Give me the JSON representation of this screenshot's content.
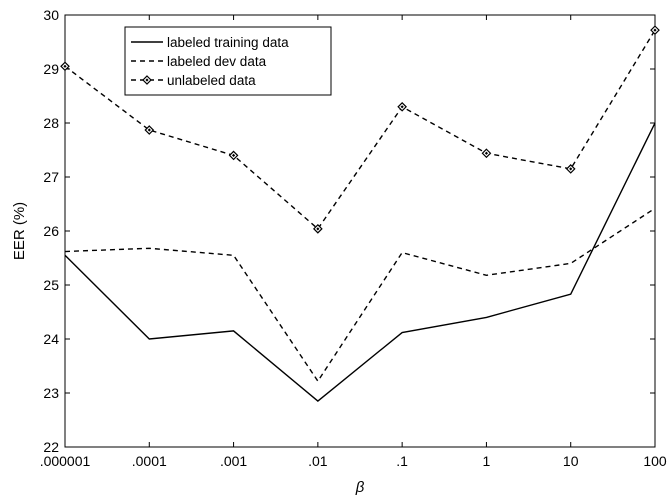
{
  "chart_data": {
    "type": "line",
    "categories": [
      ".000001",
      ".0001",
      ".001",
      ".01",
      ".1",
      "1",
      "10",
      "100"
    ],
    "xlabel": "β",
    "ylabel": "EER (%)",
    "ylim": [
      22,
      30
    ],
    "yticks": [
      "22",
      "23",
      "24",
      "25",
      "26",
      "27",
      "28",
      "29",
      "30"
    ],
    "grid": false,
    "legend_position": "top-left",
    "series": [
      {
        "name": "labeled training data",
        "style": "solid",
        "marker": "none",
        "values": [
          25.55,
          24.0,
          24.15,
          22.85,
          24.12,
          24.4,
          24.83,
          28.0
        ]
      },
      {
        "name": "labeled dev data",
        "style": "dashed",
        "marker": "none",
        "values": [
          25.62,
          25.68,
          25.55,
          23.22,
          25.6,
          25.18,
          25.4,
          26.42
        ]
      },
      {
        "name": "unlabeled data",
        "style": "dashed",
        "marker": "diamond",
        "values": [
          29.05,
          27.87,
          27.4,
          26.04,
          28.3,
          27.44,
          27.15,
          29.72
        ]
      }
    ]
  }
}
